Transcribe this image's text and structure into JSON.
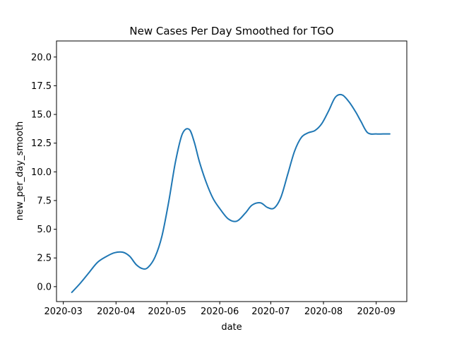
{
  "chart_data": {
    "type": "line",
    "title": "New Cases Per Day Smoothed for TGO",
    "xlabel": "date",
    "ylabel": "new_per_day_smooth",
    "x_ticks": [
      "2020-03",
      "2020-04",
      "2020-05",
      "2020-06",
      "2020-07",
      "2020-08",
      "2020-09"
    ],
    "y_ticks": [
      "0.0",
      "2.5",
      "5.0",
      "7.5",
      "10.0",
      "12.5",
      "15.0",
      "17.5",
      "20.0"
    ],
    "xlim": [
      "2020-02-26",
      "2020-09-19"
    ],
    "ylim": [
      -1.3,
      21.4
    ],
    "grid": false,
    "series": [
      {
        "color": "#1f77b4",
        "x": [
          "2020-03-06",
          "2020-03-11",
          "2020-03-16",
          "2020-03-21",
          "2020-03-26",
          "2020-03-31",
          "2020-04-05",
          "2020-04-09",
          "2020-04-13",
          "2020-04-17",
          "2020-04-20",
          "2020-04-24",
          "2020-04-28",
          "2020-05-02",
          "2020-05-06",
          "2020-05-10",
          "2020-05-14",
          "2020-05-17",
          "2020-05-20",
          "2020-05-24",
          "2020-05-28",
          "2020-06-01",
          "2020-06-06",
          "2020-06-11",
          "2020-06-16",
          "2020-06-20",
          "2020-06-25",
          "2020-06-29",
          "2020-07-03",
          "2020-07-07",
          "2020-07-11",
          "2020-07-15",
          "2020-07-19",
          "2020-07-23",
          "2020-07-27",
          "2020-07-31",
          "2020-08-04",
          "2020-08-08",
          "2020-08-12",
          "2020-08-16",
          "2020-08-20",
          "2020-08-23",
          "2020-08-27",
          "2020-09-01",
          "2020-09-05",
          "2020-09-09"
        ],
        "y": [
          -0.5,
          0.3,
          1.2,
          2.1,
          2.6,
          2.95,
          3.0,
          2.65,
          1.9,
          1.55,
          1.7,
          2.6,
          4.4,
          7.4,
          10.9,
          13.3,
          13.7,
          12.6,
          10.9,
          9.1,
          7.7,
          6.8,
          5.9,
          5.7,
          6.4,
          7.1,
          7.3,
          6.9,
          6.85,
          7.8,
          9.8,
          11.8,
          13.0,
          13.4,
          13.6,
          14.2,
          15.3,
          16.5,
          16.7,
          16.1,
          15.2,
          14.4,
          13.4,
          13.3,
          13.3,
          13.3
        ]
      }
    ]
  }
}
